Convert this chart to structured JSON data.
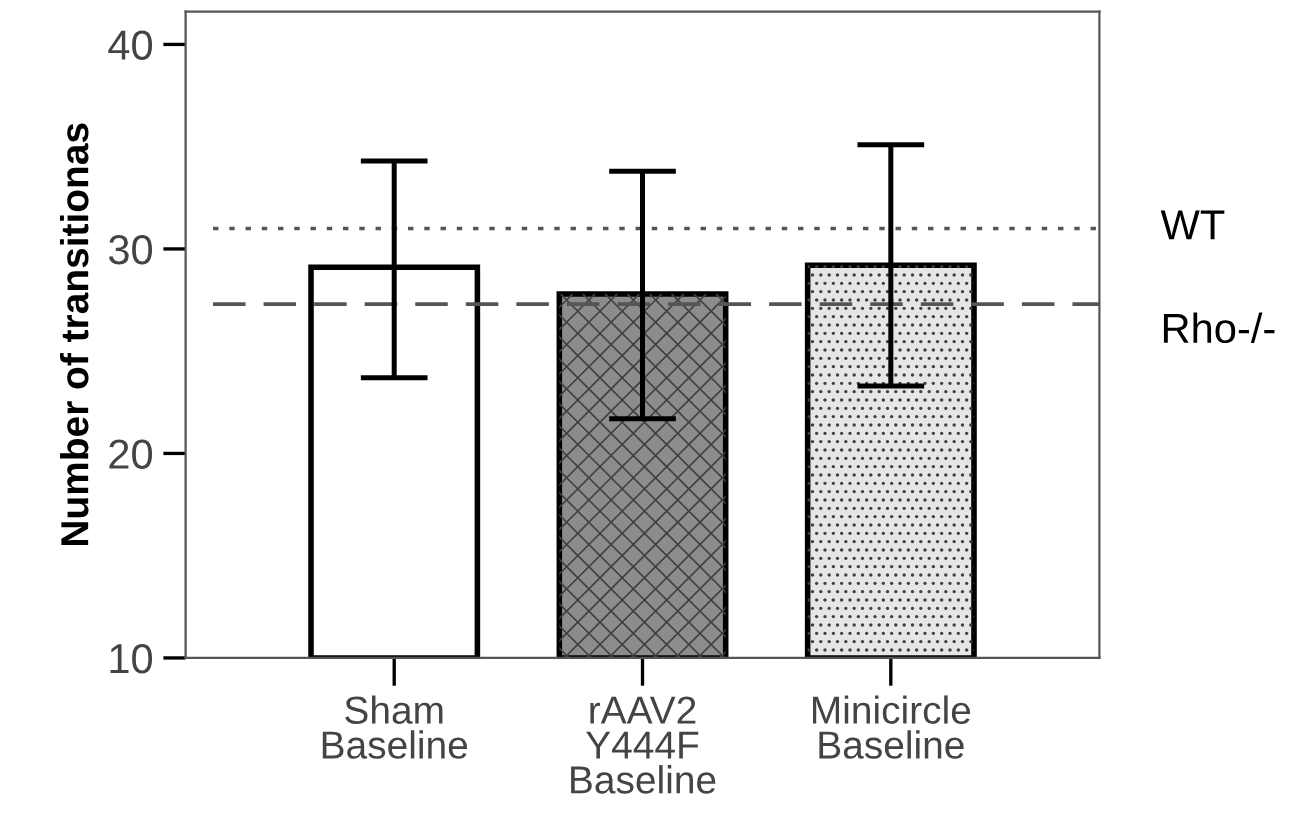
{
  "chart_data": {
    "type": "bar",
    "ylabel": "Number of transitionas",
    "categories": [
      "Sham\nBaseline",
      "rAAV2\nY444F\nBaseline",
      "Minicircle\nBaseline"
    ],
    "values": [
      29.1,
      27.8,
      29.2
    ],
    "colors": [
      "#ffffff",
      "#8c8c8c",
      "#e6e6e6"
    ],
    "errors": [
      [
        23.7,
        34.3
      ],
      [
        21.7,
        33.8
      ],
      [
        23.3,
        35.1
      ]
    ],
    "ylim": [
      10,
      41.6
    ],
    "yticks": [
      10,
      20,
      30,
      40
    ],
    "ref_lines": [
      {
        "axis": "y",
        "value": 31.0,
        "label": "WT",
        "line_style": "dotted",
        "color": "#555555"
      },
      {
        "axis": "y",
        "value": 27.3,
        "label": "Rho-/-",
        "line_style": "dashed",
        "color": "#555555"
      }
    ],
    "grid": false,
    "legend": false
  }
}
